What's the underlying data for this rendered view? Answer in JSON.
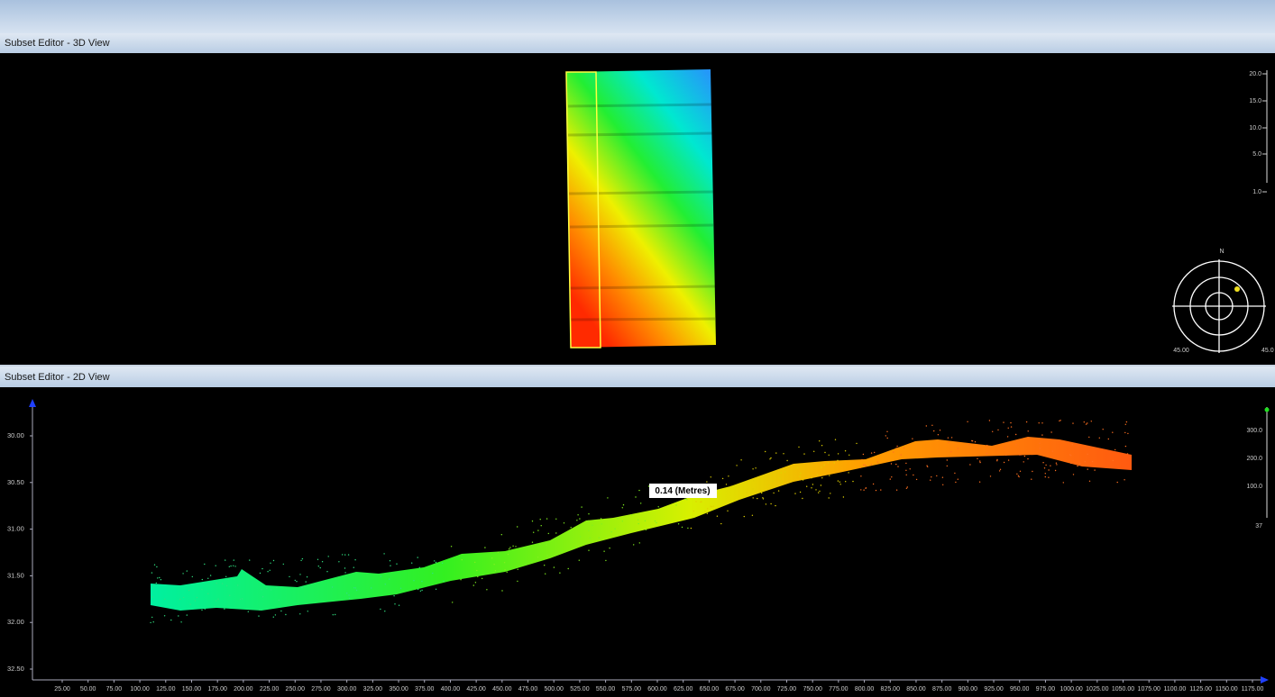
{
  "view3d": {
    "title": "Subset Editor - 3D View",
    "scale_labels": [
      "20.0",
      "15.0",
      "10.0",
      "5.0",
      "1.0"
    ],
    "compass": {
      "north": "N",
      "left": "45.00",
      "right": "45.0"
    }
  },
  "view2d": {
    "title": "Subset Editor - 2D View",
    "y_axis_labels": [
      "30.00",
      "30.50",
      "31.00",
      "31.50",
      "32.00",
      "32.50"
    ],
    "x_axis_labels": [
      "25.00",
      "50.00",
      "75.00",
      "100.00",
      "125.00",
      "150.00",
      "175.00",
      "200.00",
      "225.00",
      "250.00",
      "275.00",
      "300.00",
      "325.00",
      "350.00",
      "375.00",
      "400.00",
      "425.00",
      "450.00",
      "475.00",
      "500.00",
      "525.00",
      "550.00",
      "575.00",
      "600.00",
      "625.00",
      "650.00",
      "675.00",
      "700.00",
      "725.00",
      "750.00",
      "775.00",
      "800.00",
      "825.00",
      "850.00",
      "875.00",
      "900.00",
      "925.00",
      "950.00",
      "975.00",
      "1000.00",
      "1025.00",
      "1050.00",
      "1075.00",
      "1100.00",
      "1125.00",
      "1150.00",
      "1175.00"
    ],
    "scale_labels": [
      "300.0",
      "200.0",
      "100.0",
      "37"
    ],
    "measurement": "0.14 (Metres)"
  }
}
